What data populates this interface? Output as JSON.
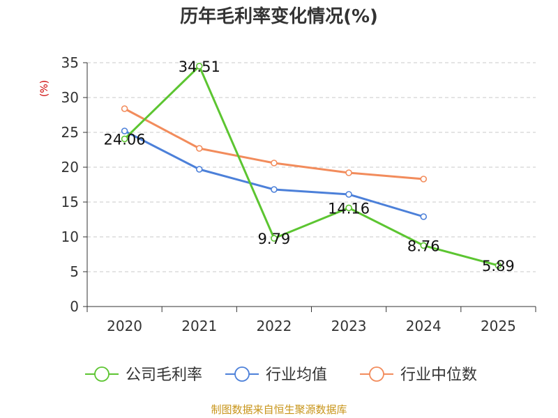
{
  "chart_data": {
    "type": "line",
    "title": "历年毛利率变化情况(%)",
    "ylabel": "(%)",
    "xlabel": "",
    "categories": [
      "2020",
      "2021",
      "2022",
      "2023",
      "2024",
      "2025"
    ],
    "yticks": [
      "0",
      "5",
      "10",
      "15",
      "20",
      "25",
      "30",
      "35"
    ],
    "ylim": [
      0,
      35
    ],
    "grid": true,
    "legend_position": "bottom",
    "series": [
      {
        "name": "公司毛利率",
        "color": "#5cc531",
        "values": [
          24.06,
          34.51,
          9.79,
          14.16,
          8.76,
          5.89
        ],
        "labels": [
          "24.06",
          "34.51",
          "9.79",
          "14.16",
          "8.76",
          "5.89"
        ]
      },
      {
        "name": "行业均值",
        "color": "#4c80d9",
        "values": [
          25.2,
          19.7,
          16.8,
          16.1,
          12.9,
          null
        ]
      },
      {
        "name": "行业中位数",
        "color": "#f28c5c",
        "values": [
          28.4,
          22.7,
          20.6,
          19.2,
          18.3,
          null
        ]
      }
    ]
  },
  "ylabel_color": "#cc0000",
  "source": {
    "text": "制图数据来自恒生聚源数据库",
    "color": "#c8951a"
  }
}
